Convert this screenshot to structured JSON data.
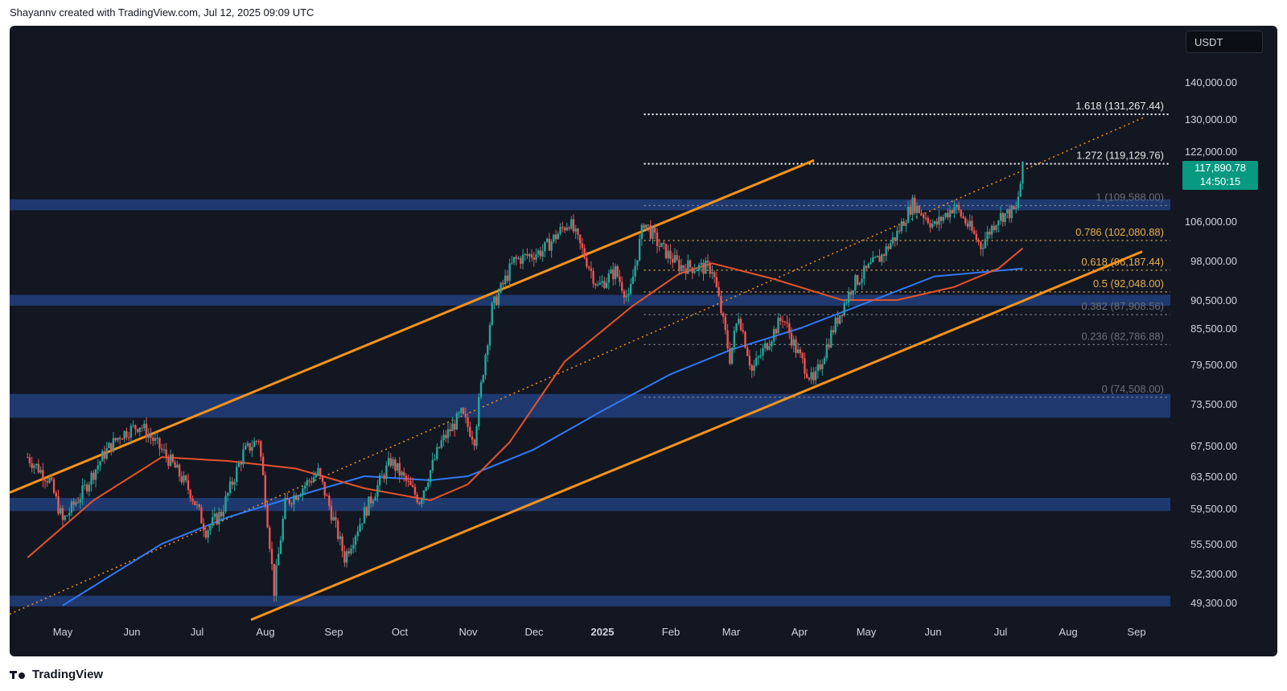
{
  "header": {
    "attribution": "Shayannv created with TradingView.com, Jul 12, 2025 09:09 UTC"
  },
  "footer": {
    "brand": "TradingView"
  },
  "colors": {
    "background": "#131722",
    "zone": "#22407c",
    "channel": "#f7931a",
    "ma100": "#e5532b",
    "ma200": "#3179f5",
    "up": "#26a69a",
    "down": "#ef5350",
    "price_tag": "#089981"
  },
  "chart_data": {
    "type": "candlestick",
    "currency": "USDT",
    "last_price": "117,890.78",
    "countdown": "14:50:15",
    "x_ticks": [
      "May",
      "Jun",
      "Jul",
      "Aug",
      "Sep",
      "Oct",
      "Nov",
      "Dec",
      "2025",
      "Feb",
      "Mar",
      "Apr",
      "May",
      "Jun",
      "Jul",
      "Aug",
      "Sep"
    ],
    "y_ticks": [
      "140,000.00",
      "130,000.00",
      "122,000.00",
      "106,000.00",
      "98,000.00",
      "90,500.00",
      "85,500.00",
      "79,500.00",
      "73,500.00",
      "67,500.00",
      "63,500.00",
      "59,500.00",
      "55,500.00",
      "52,300.00",
      "49,300.00"
    ],
    "fib_levels": [
      {
        "label": "1.618 (131,267.44)",
        "value": 131267.44
      },
      {
        "label": "1.272 (119,129.76)",
        "value": 119129.76
      },
      {
        "label": "1 (109,588.00)",
        "value": 109588.0
      },
      {
        "label": "0.786 (102,080.88)",
        "value": 102080.88
      },
      {
        "label": "0.618 (96,187.44)",
        "value": 96187.44
      },
      {
        "label": "0.5 (92,048.00)",
        "value": 92048.0
      },
      {
        "label": "0.382 (87,908.56)",
        "value": 87908.56
      },
      {
        "label": "0.236 (82,786.88)",
        "value": 82786.88
      },
      {
        "label": "0 (74,508.00)",
        "value": 74508.0
      }
    ],
    "support_resistance_zones": [
      {
        "low": 108500,
        "high": 111000
      },
      {
        "low": 89500,
        "high": 91500
      },
      {
        "low": 71500,
        "high": 75000
      },
      {
        "low": 59200,
        "high": 60800
      },
      {
        "low": 48900,
        "high": 50000
      }
    ],
    "price_path": [
      [
        "2024-04-15",
        66000
      ],
      [
        "2024-04-25",
        63000
      ],
      [
        "2024-05-01",
        58000
      ],
      [
        "2024-05-10",
        61500
      ],
      [
        "2024-05-20",
        66500
      ],
      [
        "2024-05-27",
        69000
      ],
      [
        "2024-06-05",
        70500
      ],
      [
        "2024-06-12",
        68000
      ],
      [
        "2024-06-20",
        65000
      ],
      [
        "2024-06-28",
        61500
      ],
      [
        "2024-07-05",
        57000
      ],
      [
        "2024-07-12",
        59000
      ],
      [
        "2024-07-22",
        66500
      ],
      [
        "2024-07-29",
        68500
      ],
      [
        "2024-08-05",
        50500
      ],
      [
        "2024-08-10",
        60000
      ],
      [
        "2024-08-25",
        64000
      ],
      [
        "2024-09-06",
        54000
      ],
      [
        "2024-09-15",
        59000
      ],
      [
        "2024-09-27",
        65500
      ],
      [
        "2024-10-10",
        60500
      ],
      [
        "2024-10-20",
        68000
      ],
      [
        "2024-10-29",
        72000
      ],
      [
        "2024-11-04",
        68500
      ],
      [
        "2024-11-12",
        89000
      ],
      [
        "2024-11-22",
        98000
      ],
      [
        "2024-12-05",
        100000
      ],
      [
        "2024-12-17",
        106000
      ],
      [
        "2024-12-30",
        93000
      ],
      [
        "2025-01-07",
        96000
      ],
      [
        "2025-01-13",
        90500
      ],
      [
        "2025-01-20",
        106000
      ],
      [
        "2025-01-27",
        101000
      ],
      [
        "2025-02-05",
        97000
      ],
      [
        "2025-02-20",
        96500
      ],
      [
        "2025-02-28",
        80500
      ],
      [
        "2025-03-04",
        88000
      ],
      [
        "2025-03-10",
        78500
      ],
      [
        "2025-03-24",
        87500
      ],
      [
        "2025-03-30",
        82000
      ],
      [
        "2025-04-07",
        76500
      ],
      [
        "2025-04-15",
        84500
      ],
      [
        "2025-04-25",
        93500
      ],
      [
        "2025-05-08",
        99000
      ],
      [
        "2025-05-15",
        103500
      ],
      [
        "2025-05-22",
        110000
      ],
      [
        "2025-06-01",
        105000
      ],
      [
        "2025-06-10",
        109500
      ],
      [
        "2025-06-22",
        101000
      ],
      [
        "2025-06-30",
        107000
      ],
      [
        "2025-07-08",
        108500
      ],
      [
        "2025-07-11",
        117890
      ]
    ],
    "ma_100": [
      [
        "2024-04-15",
        54000
      ],
      [
        "2024-05-15",
        60500
      ],
      [
        "2024-06-15",
        66000
      ],
      [
        "2024-07-15",
        65500
      ],
      [
        "2024-08-15",
        64500
      ],
      [
        "2024-09-15",
        62000
      ],
      [
        "2024-10-15",
        60500
      ],
      [
        "2024-11-01",
        62500
      ],
      [
        "2024-11-20",
        68000
      ],
      [
        "2024-12-15",
        80000
      ],
      [
        "2025-01-15",
        89500
      ],
      [
        "2025-02-05",
        95500
      ],
      [
        "2025-02-20",
        97500
      ],
      [
        "2025-03-20",
        94500
      ],
      [
        "2025-04-20",
        90500
      ],
      [
        "2025-05-15",
        90500
      ],
      [
        "2025-06-10",
        93000
      ],
      [
        "2025-06-30",
        96500
      ],
      [
        "2025-07-11",
        100500
      ]
    ],
    "ma_200": [
      [
        "2024-05-01",
        49000
      ],
      [
        "2024-06-15",
        55500
      ],
      [
        "2024-07-15",
        58500
      ],
      [
        "2024-08-15",
        61000
      ],
      [
        "2024-09-15",
        63500
      ],
      [
        "2024-10-15",
        63000
      ],
      [
        "2024-11-01",
        63500
      ],
      [
        "2024-12-01",
        67000
      ],
      [
        "2025-01-01",
        72500
      ],
      [
        "2025-02-01",
        78000
      ],
      [
        "2025-03-01",
        82000
      ],
      [
        "2025-04-01",
        85500
      ],
      [
        "2025-05-01",
        90000
      ],
      [
        "2025-06-01",
        95000
      ],
      [
        "2025-07-11",
        96500
      ]
    ]
  }
}
